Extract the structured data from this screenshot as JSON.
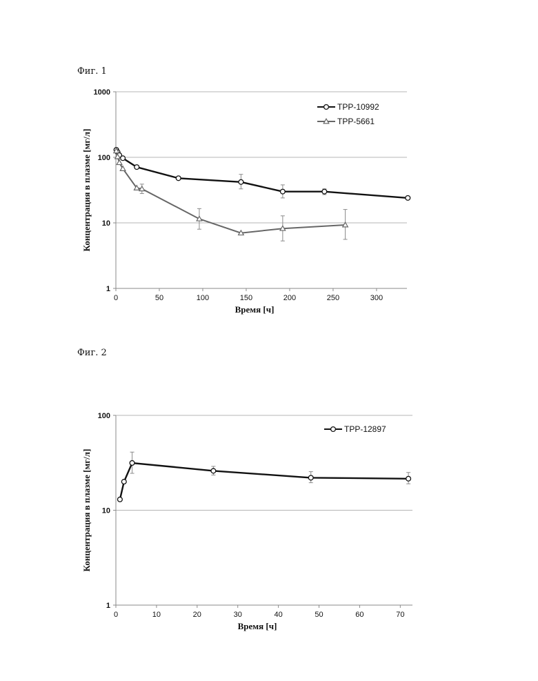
{
  "figures": [
    {
      "label": "Фиг. 1"
    },
    {
      "label": "Фиг. 2"
    }
  ],
  "chart_data": [
    {
      "type": "line",
      "yscale": "log",
      "xlabel": "Время [ч]",
      "ylabel": "Концентрация в плазме [мг/л]",
      "xlim": [
        0,
        335
      ],
      "ylim": [
        1,
        1000
      ],
      "xticks": [
        0,
        50,
        100,
        150,
        200,
        250,
        300
      ],
      "yticks": [
        1,
        10,
        100,
        1000
      ],
      "grid": "horizontal",
      "legend_position": "top-right",
      "series": [
        {
          "name": "TPP-10992",
          "marker": "circle",
          "color": "#111111",
          "points": [
            {
              "x": 0.5,
              "y": 130
            },
            {
              "x": 2,
              "y": 120
            },
            {
              "x": 4,
              "y": 108
            },
            {
              "x": 8,
              "y": 97
            },
            {
              "x": 24,
              "y": 71
            },
            {
              "x": 72,
              "y": 48
            },
            {
              "x": 144,
              "y": 42,
              "err": [
                33,
                55
              ]
            },
            {
              "x": 192,
              "y": 30,
              "err": [
                24,
                38
              ]
            },
            {
              "x": 240,
              "y": 30,
              "err": [
                27,
                33
              ]
            },
            {
              "x": 336,
              "y": 24
            }
          ]
        },
        {
          "name": "TPP-5661",
          "marker": "triangle",
          "color": "#666666",
          "points": [
            {
              "x": 0.5,
              "y": 125
            },
            {
              "x": 2,
              "y": 102
            },
            {
              "x": 4,
              "y": 83
            },
            {
              "x": 8,
              "y": 67
            },
            {
              "x": 24,
              "y": 34
            },
            {
              "x": 30,
              "y": 33,
              "err": [
                28,
                39
              ]
            },
            {
              "x": 96,
              "y": 11.5,
              "err": [
                8,
                16.5
              ]
            },
            {
              "x": 144,
              "y": 7
            },
            {
              "x": 192,
              "y": 8.2,
              "err": [
                5.3,
                12.8
              ]
            },
            {
              "x": 264,
              "y": 9.3,
              "err": [
                5.6,
                16
              ]
            }
          ]
        }
      ]
    },
    {
      "type": "line",
      "yscale": "log",
      "xlabel": "Время [ч]",
      "ylabel": "Концентрация в плазме [мг/л]",
      "xlim": [
        0,
        73
      ],
      "ylim": [
        1,
        100
      ],
      "xticks": [
        0,
        10,
        20,
        30,
        40,
        50,
        60,
        70
      ],
      "yticks": [
        1,
        10,
        100
      ],
      "grid": "horizontal",
      "legend_position": "top-right",
      "series": [
        {
          "name": "TPP-12897",
          "marker": "circle",
          "color": "#111111",
          "points": [
            {
              "x": 1,
              "y": 13
            },
            {
              "x": 2,
              "y": 20
            },
            {
              "x": 4,
              "y": 31.5,
              "err": [
                24.5,
                41
              ]
            },
            {
              "x": 24,
              "y": 26,
              "err": [
                23.5,
                29
              ]
            },
            {
              "x": 48,
              "y": 22,
              "err": [
                19.5,
                25.5
              ]
            },
            {
              "x": 72,
              "y": 21.5,
              "err": [
                19,
                25
              ]
            }
          ]
        }
      ]
    }
  ]
}
